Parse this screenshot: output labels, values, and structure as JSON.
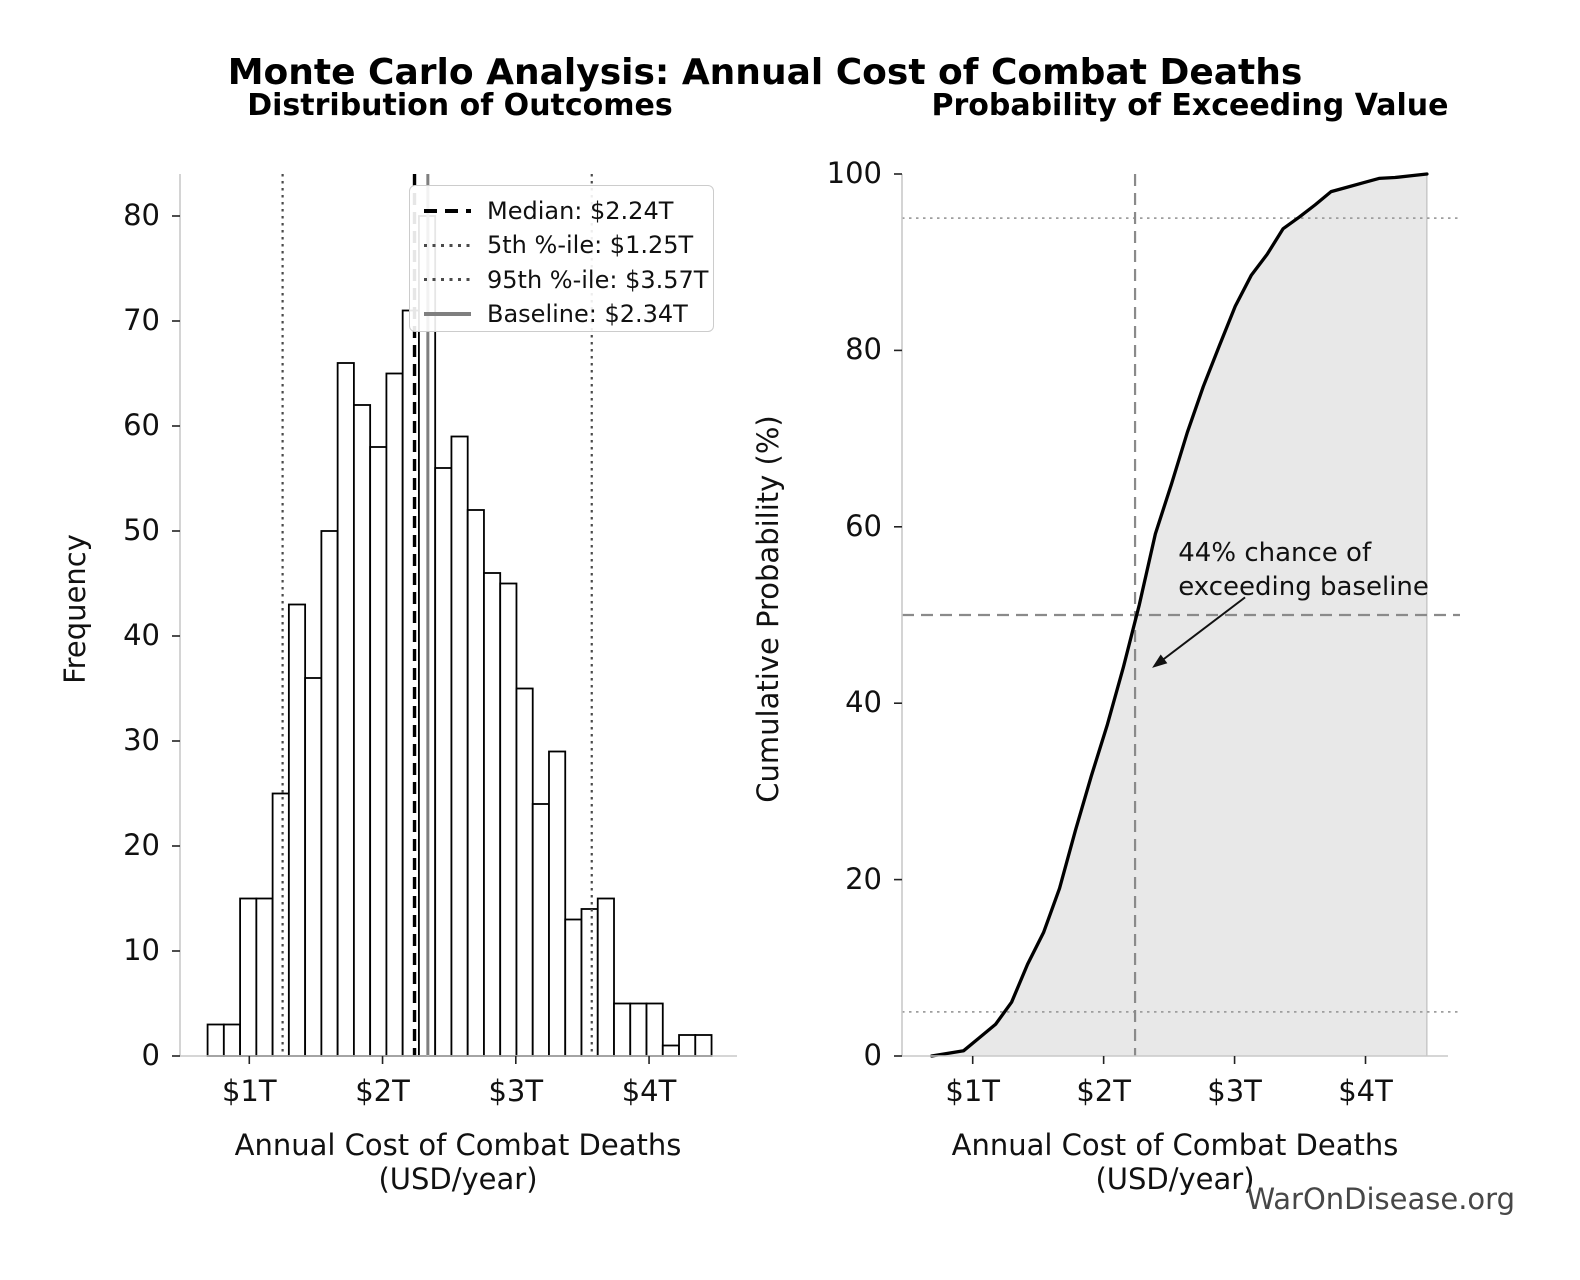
{
  "header": {
    "title": "Monte Carlo Analysis: Annual Cost of Combat Deaths"
  },
  "watermark": {
    "text": "WarOnDisease.org",
    "color": "#474747"
  },
  "chart_data": [
    {
      "type": "bar",
      "title": "Distribution of Outcomes",
      "xlabel": "Annual Cost of Combat Deaths (USD/year)",
      "ylabel": "Frequency",
      "xlim": [
        0.48,
        4.66
      ],
      "ylim": [
        0,
        84
      ],
      "xticks": [
        {
          "v": 1,
          "label": "$1T"
        },
        {
          "v": 2,
          "label": "$2T"
        },
        {
          "v": 3,
          "label": "$3T"
        },
        {
          "v": 4,
          "label": "$4T"
        }
      ],
      "yticks": [
        0,
        10,
        20,
        30,
        40,
        50,
        60,
        70,
        80
      ],
      "grid": false,
      "n_samples": 1000,
      "bins": {
        "start": 0.687,
        "width": 0.122,
        "unit": "trillion USD"
      },
      "counts": [
        3,
        3,
        15,
        15,
        25,
        43,
        36,
        50,
        66,
        62,
        58,
        65,
        71,
        80,
        56,
        59,
        52,
        46,
        45,
        35,
        24,
        29,
        13,
        14,
        15,
        5,
        5,
        5,
        1,
        2,
        2
      ],
      "bar_fill": "#ffffff",
      "bar_edge": "#000000",
      "marker_lines": [
        {
          "name": "median",
          "x": 2.24,
          "style": "dashed",
          "color": "#000000",
          "width": 3.4
        },
        {
          "name": "5th-percentile",
          "x": 1.25,
          "style": "dotted",
          "color": "#4a4a4a",
          "width": 2.2
        },
        {
          "name": "95th-percentile",
          "x": 3.57,
          "style": "dotted",
          "color": "#4a4a4a",
          "width": 2.2
        },
        {
          "name": "baseline",
          "x": 2.34,
          "style": "solid",
          "color": "#7f7f7f",
          "width": 3
        }
      ],
      "legend": [
        {
          "name": "median",
          "label": "Median: $2.24T"
        },
        {
          "name": "5th-percentile",
          "label": "5th %-ile: $1.25T"
        },
        {
          "name": "95th-percentile",
          "label": "95th %-ile: $3.57T"
        },
        {
          "name": "baseline",
          "label": "Baseline: $2.34T"
        }
      ],
      "legend_position": "upper right"
    },
    {
      "type": "line",
      "title": "Probability of Exceeding Value",
      "xlabel": "Annual Cost of Combat Deaths (USD/year)",
      "ylabel": "Cumulative Probability (%)",
      "xlim": [
        0.46,
        4.63
      ],
      "ylim": [
        0,
        100
      ],
      "xticks": [
        {
          "v": 1,
          "label": "$1T"
        },
        {
          "v": 2,
          "label": "$2T"
        },
        {
          "v": 3,
          "label": "$3T"
        },
        {
          "v": 4,
          "label": "$4T"
        }
      ],
      "yticks": [
        0,
        20,
        40,
        60,
        80,
        100
      ],
      "grid": false,
      "curve_color": "#000000",
      "fill_color": "#e8e8e8",
      "fill_edge": "#b4b4b4",
      "cdf": {
        "x": [
          0.687,
          0.809,
          0.931,
          1.053,
          1.175,
          1.297,
          1.419,
          1.541,
          1.663,
          1.785,
          1.907,
          2.029,
          2.151,
          2.273,
          2.395,
          2.517,
          2.639,
          2.761,
          2.883,
          3.005,
          3.127,
          3.249,
          3.371,
          3.493,
          3.615,
          3.737,
          3.859,
          3.981,
          4.103,
          4.225,
          4.347,
          4.469
        ],
        "y": [
          0,
          0.3,
          0.6,
          2.1,
          3.6,
          6.1,
          10.4,
          14.0,
          19.0,
          25.6,
          31.8,
          37.6,
          44.1,
          51.2,
          59.2,
          64.8,
          70.7,
          75.9,
          80.5,
          85.0,
          88.5,
          90.9,
          93.8,
          95.1,
          96.5,
          98.0,
          98.5,
          99.0,
          99.5,
          99.6,
          99.8,
          100
        ],
        "x_unit": "trillion USD",
        "y_unit": "percent"
      },
      "hlines": [
        {
          "name": "5th-percentile",
          "y": 5,
          "style": "dotted",
          "color": "#9e9e9e",
          "width": 1.8
        },
        {
          "name": "50-percent",
          "y": 50,
          "style": "dashed",
          "color": "#8a8a8a",
          "width": 2.2
        },
        {
          "name": "95th-percentile",
          "y": 95,
          "style": "dotted",
          "color": "#9e9e9e",
          "width": 1.8
        }
      ],
      "vlines": [
        {
          "name": "median",
          "x": 2.24,
          "style": "dashed",
          "color": "#8a8a8a",
          "width": 2.2
        }
      ],
      "annotation": {
        "line1": "44% chance of",
        "line2": "exceeding baseline",
        "text_x": 2.57,
        "text_y": 58.8,
        "arrow_start": [
          3.08,
          52
        ],
        "arrow_tip": [
          2.37,
          44
        ],
        "arrow_color": "#111111"
      }
    }
  ]
}
